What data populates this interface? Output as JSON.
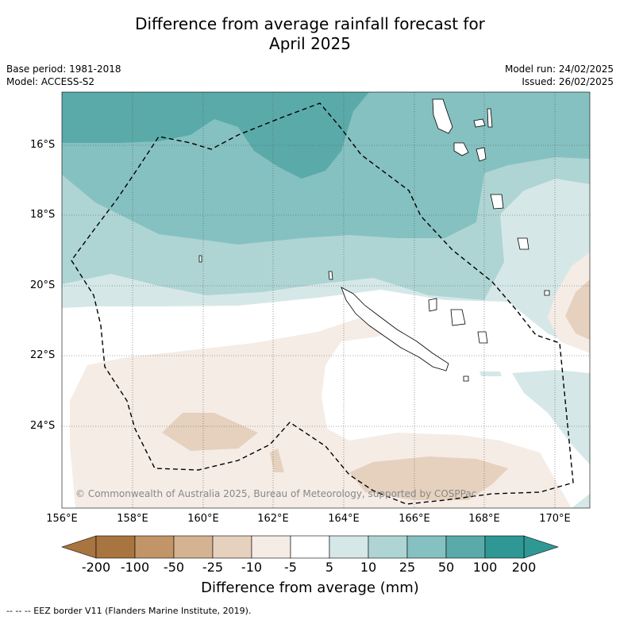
{
  "title_line1": "Difference from average rainfall forecast for",
  "title_line2": "April 2025",
  "base_period": "Base period: 1981-2018",
  "model": "Model: ACCESS-S2",
  "model_run": "Model run: 24/02/2025",
  "issued": "Issued: 26/02/2025",
  "copyright": "© Commonwealth of Australia 2025, Bureau of Meteorology, supported by COSPPac",
  "lat_ticks": [
    "16°S",
    "18°S",
    "20°S",
    "22°S",
    "24°S"
  ],
  "lon_ticks": [
    "156°E",
    "158°E",
    "160°E",
    "162°E",
    "164°E",
    "166°E",
    "168°E",
    "170°E"
  ],
  "colorbar": {
    "labels": [
      "-200",
      "-100",
      "-50",
      "-25",
      "-10",
      "-5",
      "5",
      "10",
      "25",
      "50",
      "100",
      "200"
    ],
    "colors": [
      "#a87440",
      "#c19568",
      "#d4b392",
      "#e6d1be",
      "#f5ece6",
      "#ffffff",
      "#d5e8e7",
      "#aed5d4",
      "#85c1c0",
      "#5aaaaa",
      "#2f9894"
    ],
    "title": "Difference from average (mm)"
  },
  "footnote": "-- -- -- EEZ border V11 (Flanders Marine Institute, 2019)."
}
